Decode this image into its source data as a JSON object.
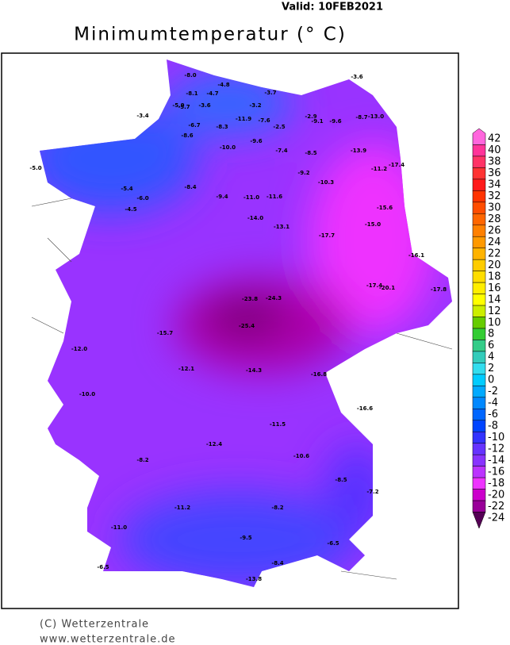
{
  "header": {
    "valid": "Valid:  10FEB2021",
    "title": "Minimumtemperatur (° C)"
  },
  "legend": {
    "levels": [
      42,
      40,
      38,
      36,
      34,
      32,
      30,
      28,
      26,
      24,
      22,
      20,
      18,
      16,
      14,
      12,
      10,
      8,
      6,
      4,
      2,
      0,
      -2,
      -4,
      -6,
      -8,
      -10,
      -12,
      -14,
      -16,
      -18,
      -20,
      -22,
      -24
    ],
    "colors": [
      "#ff66dd",
      "#ff3399",
      "#ff3366",
      "#ff3333",
      "#ff1a1a",
      "#ff3300",
      "#ff4d00",
      "#ff6600",
      "#ff8000",
      "#ff9900",
      "#ffb300",
      "#ffcc00",
      "#ffdd00",
      "#ffee00",
      "#ffff00",
      "#ccee00",
      "#66cc00",
      "#33cc33",
      "#33cc88",
      "#33ccbb",
      "#33ddee",
      "#00ccff",
      "#00aaff",
      "#0088ff",
      "#0066ff",
      "#0044ff",
      "#3333ff",
      "#6633ff",
      "#8833ff",
      "#bb33ff",
      "#ee33ff",
      "#cc00cc",
      "#990099",
      "#550055"
    ]
  },
  "stations": [
    "-8.0",
    "-8.1",
    "-4.7",
    "-4.8",
    "-5.9",
    "-5.7",
    "-3.6",
    "-3.2",
    "-3.7",
    "-3.6",
    "-3.4",
    "-6.7",
    "-8.3",
    "-11.9",
    "-7.6",
    "-2.5",
    "-2.9",
    "-9.1",
    "-9.6",
    "-8.7",
    "-13.0",
    "-5.0",
    "-5.4",
    "-6.0",
    "-4.5",
    "-8.6",
    "-10.0",
    "-9.6",
    "-7.4",
    "-8.5",
    "-13.9",
    "-17.4",
    "-11.2",
    "-9.2",
    "-10.3",
    "-8.4",
    "-9.4",
    "-11.0",
    "-11.6",
    "-15.6",
    "-14.0",
    "-13.1",
    "-17.7",
    "-15.0",
    "-16.1",
    "-17.4",
    "-20.1",
    "-17.8",
    "-23.8",
    "-24.3",
    "-25.4",
    "-15.7",
    "-12.0",
    "-10.0",
    "-12.1",
    "-14.3",
    "-16.8",
    "-16.6",
    "-11.5",
    "-12.4",
    "-10.6",
    "-8.2",
    "-8.5",
    "-7.2",
    "-11.2",
    "-8.2",
    "-11.0",
    "-9.5",
    "-6.5",
    "-6.5",
    "-8.4",
    "-13.8"
  ],
  "footer": {
    "copyright": "(C) Wetterzentrale",
    "url": "www.wetterzentrale.de"
  }
}
